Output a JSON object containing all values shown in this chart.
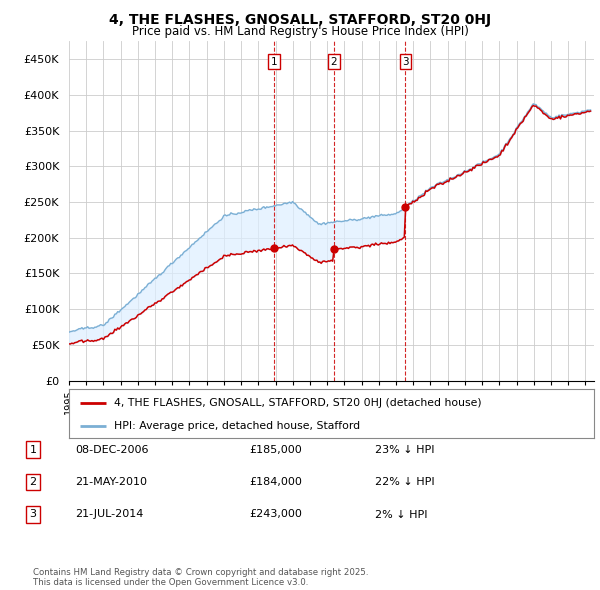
{
  "title": "4, THE FLASHES, GNOSALL, STAFFORD, ST20 0HJ",
  "subtitle": "Price paid vs. HM Land Registry's House Price Index (HPI)",
  "legend_line1": "4, THE FLASHES, GNOSALL, STAFFORD, ST20 0HJ (detached house)",
  "legend_line2": "HPI: Average price, detached house, Stafford",
  "sale_color": "#cc0000",
  "hpi_color": "#7bafd4",
  "fill_color": "#ddeeff",
  "vline_color": "#cc0000",
  "background_color": "#ffffff",
  "grid_color": "#cccccc",
  "ylim": [
    0,
    475000
  ],
  "yticks": [
    0,
    50000,
    100000,
    150000,
    200000,
    250000,
    300000,
    350000,
    400000,
    450000
  ],
  "ytick_labels": [
    "£0",
    "£50K",
    "£100K",
    "£150K",
    "£200K",
    "£250K",
    "£300K",
    "£350K",
    "£400K",
    "£450K"
  ],
  "purchase_year_floats": [
    2006.9178,
    2010.3836,
    2014.5479
  ],
  "purchase_prices": [
    185000,
    184000,
    243000
  ],
  "purchase_labels": [
    "1",
    "2",
    "3"
  ],
  "table_rows": [
    [
      "1",
      "08-DEC-2006",
      "£185,000",
      "23% ↓ HPI"
    ],
    [
      "2",
      "21-MAY-2010",
      "£184,000",
      "22% ↓ HPI"
    ],
    [
      "3",
      "21-JUL-2014",
      "£243,000",
      "2% ↓ HPI"
    ]
  ],
  "footer": "Contains HM Land Registry data © Crown copyright and database right 2025.\nThis data is licensed under the Open Government Licence v3.0."
}
